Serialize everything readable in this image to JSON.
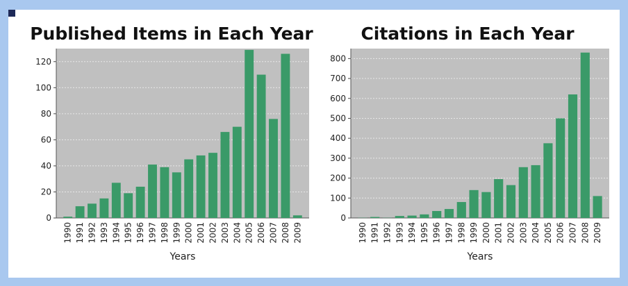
{
  "colors": {
    "background": "#a9c8ef",
    "plot_bg": "#c0c0c0",
    "bar": "#3a9a68",
    "grid": "#e8e8e8"
  },
  "chart_data": [
    {
      "type": "bar",
      "title": "Published Items in Each Year",
      "xlabel": "Years",
      "ylabel": "",
      "categories": [
        "1990",
        "1991",
        "1992",
        "1993",
        "1994",
        "1995",
        "1996",
        "1997",
        "1998",
        "1999",
        "2000",
        "2001",
        "2002",
        "2003",
        "2004",
        "2005",
        "2006",
        "2007",
        "2008",
        "2009"
      ],
      "values": [
        1,
        9,
        11,
        15,
        27,
        19,
        24,
        41,
        39,
        35,
        45,
        48,
        50,
        66,
        70,
        129,
        110,
        76,
        126,
        2
      ],
      "ylim": [
        0,
        130
      ],
      "yticks": [
        0,
        20,
        40,
        60,
        80,
        100,
        120
      ],
      "grid": true
    },
    {
      "type": "bar",
      "title": "Citations in Each Year",
      "xlabel": "Years",
      "ylabel": "",
      "categories": [
        "1990",
        "1991",
        "1992",
        "1993",
        "1994",
        "1995",
        "1996",
        "1997",
        "1998",
        "1999",
        "2000",
        "2001",
        "2002",
        "2003",
        "2004",
        "2005",
        "2006",
        "2007",
        "2008",
        "2009"
      ],
      "values": [
        1,
        5,
        1,
        10,
        12,
        18,
        35,
        45,
        80,
        140,
        130,
        195,
        165,
        255,
        265,
        375,
        500,
        620,
        830,
        110
      ],
      "ylim": [
        0,
        850
      ],
      "yticks": [
        0,
        100,
        200,
        300,
        400,
        500,
        600,
        700,
        800
      ],
      "grid": true
    }
  ]
}
